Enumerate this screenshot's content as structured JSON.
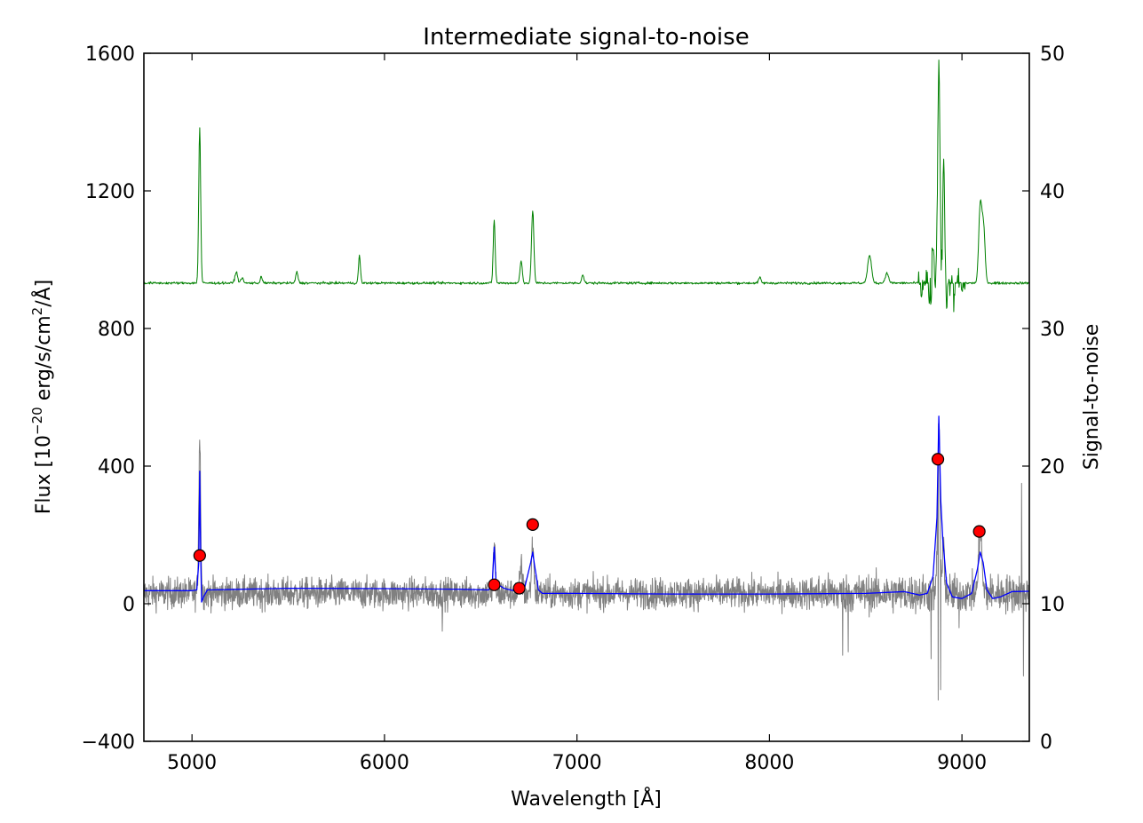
{
  "chart_data": {
    "type": "line",
    "title": "Intermediate signal-to-noise",
    "xlabel": "Wavelength [Å]",
    "ylabel": "Flux [10^-20 erg/s/cm²/Å]",
    "ylabel_parts": {
      "prefix": "Flux [",
      "base": "10",
      "exp": "−20",
      "unit": " erg/s/cm",
      "unit_exp": "2",
      "suffix": "/Å]"
    },
    "y2label": "Signal-to-noise",
    "xlim": [
      4750,
      9350
    ],
    "ylim": [
      -400,
      1600
    ],
    "y2lim": [
      0,
      50
    ],
    "xticks": [
      5000,
      6000,
      7000,
      8000,
      9000
    ],
    "xtick_labels": [
      "5000",
      "6000",
      "7000",
      "8000",
      "9000"
    ],
    "yticks": [
      -400,
      0,
      400,
      800,
      1200,
      1600
    ],
    "ytick_labels": [
      "−400",
      "0",
      "400",
      "800",
      "1200",
      "1600"
    ],
    "y2ticks": [
      0,
      10,
      20,
      30,
      40,
      50
    ],
    "y2tick_labels": [
      "0",
      "10",
      "20",
      "30",
      "40",
      "50"
    ],
    "grid": false,
    "series": [
      {
        "id": "sn",
        "axis": "right",
        "color": "#008000",
        "baseline": 33.3,
        "noise": 0.08,
        "lines": [
          {
            "x": 5040,
            "h": 11.3,
            "w": 5
          },
          {
            "x": 5230,
            "h": 0.8,
            "w": 7
          },
          {
            "x": 5260,
            "h": 0.4,
            "w": 6
          },
          {
            "x": 5360,
            "h": 0.5,
            "w": 5
          },
          {
            "x": 5545,
            "h": 0.8,
            "w": 6
          },
          {
            "x": 5870,
            "h": 2.0,
            "w": 5
          },
          {
            "x": 6570,
            "h": 4.6,
            "w": 5
          },
          {
            "x": 6710,
            "h": 1.6,
            "w": 6
          },
          {
            "x": 6770,
            "h": 5.3,
            "w": 6
          },
          {
            "x": 7030,
            "h": 0.6,
            "w": 6
          },
          {
            "x": 7950,
            "h": 0.4,
            "w": 6
          },
          {
            "x": 8520,
            "h": 2.0,
            "w": 10
          },
          {
            "x": 8610,
            "h": 0.7,
            "w": 9
          },
          {
            "x": 8850,
            "h": 2.5,
            "w": 8
          },
          {
            "x": 8880,
            "h": 15.5,
            "w": 6
          },
          {
            "x": 8905,
            "h": 9.0,
            "w": 5
          },
          {
            "x": 9095,
            "h": 5.5,
            "w": 8
          },
          {
            "x": 9112,
            "h": 4.0,
            "w": 8
          }
        ],
        "dips": [
          {
            "x": 8790,
            "h": 1.2
          },
          {
            "x": 8830,
            "h": 1.6
          },
          {
            "x": 8840,
            "h": 2.5
          },
          {
            "x": 8860,
            "h": 1.6
          },
          {
            "x": 8895,
            "h": 1.2
          },
          {
            "x": 8920,
            "h": 2.0
          },
          {
            "x": 8960,
            "h": 1.2
          },
          {
            "x": 9000,
            "h": 0.8
          }
        ]
      },
      {
        "id": "flux_observed",
        "axis": "left",
        "color": "#808080",
        "baseline": 30,
        "noise": 42,
        "lines": [
          {
            "x": 5040,
            "h": 450,
            "w": 5
          },
          {
            "x": 6570,
            "h": 150,
            "w": 5
          },
          {
            "x": 6710,
            "h": 80,
            "w": 6
          },
          {
            "x": 6770,
            "h": 140,
            "w": 6
          },
          {
            "x": 8880,
            "h": 500,
            "w": 6
          },
          {
            "x": 8905,
            "h": 140,
            "w": 5
          },
          {
            "x": 9095,
            "h": 190,
            "w": 8
          }
        ],
        "spikes": [
          {
            "x": 6300,
            "v": -80
          },
          {
            "x": 8380,
            "v": -150
          },
          {
            "x": 8410,
            "v": -140
          },
          {
            "x": 8840,
            "v": -160
          },
          {
            "x": 8876,
            "v": -280
          },
          {
            "x": 8890,
            "v": -250
          },
          {
            "x": 9320,
            "v": -210
          },
          {
            "x": 9310,
            "v": 350
          },
          {
            "x": 8985,
            "v": -70
          }
        ]
      },
      {
        "id": "flux_model",
        "axis": "left",
        "color": "#0000ff",
        "points": [
          [
            4750,
            38
          ],
          [
            5000,
            38
          ],
          [
            5025,
            40
          ],
          [
            5035,
            120
          ],
          [
            5040,
            385
          ],
          [
            5045,
            150
          ],
          [
            5050,
            5
          ],
          [
            5060,
            20
          ],
          [
            5080,
            40
          ],
          [
            5500,
            45
          ],
          [
            6000,
            44
          ],
          [
            6400,
            42
          ],
          [
            6540,
            40
          ],
          [
            6560,
            60
          ],
          [
            6570,
            165
          ],
          [
            6580,
            60
          ],
          [
            6620,
            45
          ],
          [
            6690,
            35
          ],
          [
            6710,
            38
          ],
          [
            6730,
            50
          ],
          [
            6760,
            120
          ],
          [
            6770,
            150
          ],
          [
            6780,
            110
          ],
          [
            6800,
            40
          ],
          [
            6820,
            30
          ],
          [
            7000,
            30
          ],
          [
            7500,
            28
          ],
          [
            8000,
            28
          ],
          [
            8500,
            30
          ],
          [
            8700,
            35
          ],
          [
            8780,
            25
          ],
          [
            8820,
            30
          ],
          [
            8850,
            80
          ],
          [
            8870,
            250
          ],
          [
            8880,
            545
          ],
          [
            8890,
            300
          ],
          [
            8900,
            190
          ],
          [
            8920,
            60
          ],
          [
            8950,
            20
          ],
          [
            9000,
            15
          ],
          [
            9050,
            30
          ],
          [
            9080,
            100
          ],
          [
            9095,
            150
          ],
          [
            9110,
            120
          ],
          [
            9130,
            40
          ],
          [
            9160,
            15
          ],
          [
            9200,
            20
          ],
          [
            9260,
            35
          ],
          [
            9350,
            36
          ]
        ]
      }
    ],
    "markers": {
      "color": "#ff0000",
      "edge": "#000000",
      "points": [
        {
          "x": 5040,
          "y": 140
        },
        {
          "x": 6570,
          "y": 55
        },
        {
          "x": 6700,
          "y": 45
        },
        {
          "x": 6770,
          "y": 230
        },
        {
          "x": 8875,
          "y": 420
        },
        {
          "x": 9090,
          "y": 210
        }
      ]
    }
  }
}
